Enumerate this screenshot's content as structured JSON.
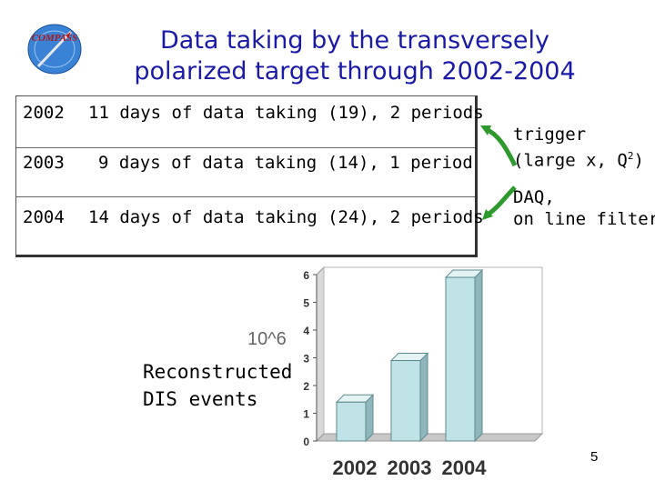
{
  "logo": {
    "text": "COMPASS",
    "icon": "compass-logo-icon"
  },
  "title": {
    "line1": "Data taking by the transversely",
    "line2": "polarized target  through 2002-2004"
  },
  "table": {
    "rows": [
      {
        "year": "2002",
        "desc": "11 days of data taking (19), 2 periods"
      },
      {
        "year": "2003",
        "desc": "9 days of data taking (14), 1 period"
      },
      {
        "year": "2004",
        "desc": "14 days of data taking (24), 2 periods"
      }
    ]
  },
  "notes": {
    "trigger_line1": "trigger",
    "trigger_line2_pre": "(large x, Q",
    "trigger_sup": "2",
    "trigger_line2_post": ")",
    "daq_line1": "DAQ,",
    "daq_line2": "on line filter"
  },
  "chart_caption": {
    "line1": "Reconstructed",
    "line2": "DIS events"
  },
  "chart_unit": "10^6",
  "page_number": "5",
  "colors": {
    "title": "#1a1aa6",
    "arrow": "#2e9a2e",
    "bar_front": "#bfe3e6",
    "bar_side": "#8fb7bb"
  },
  "chart_data": {
    "type": "bar",
    "categories": [
      "2002",
      "2003",
      "2004"
    ],
    "values": [
      1.4,
      2.9,
      5.9
    ],
    "ylim": [
      0,
      6
    ],
    "yticks": [
      "0",
      "1",
      "2",
      "3",
      "4",
      "5",
      "6"
    ],
    "ylabel": "10^6",
    "title": "",
    "grid": false
  }
}
